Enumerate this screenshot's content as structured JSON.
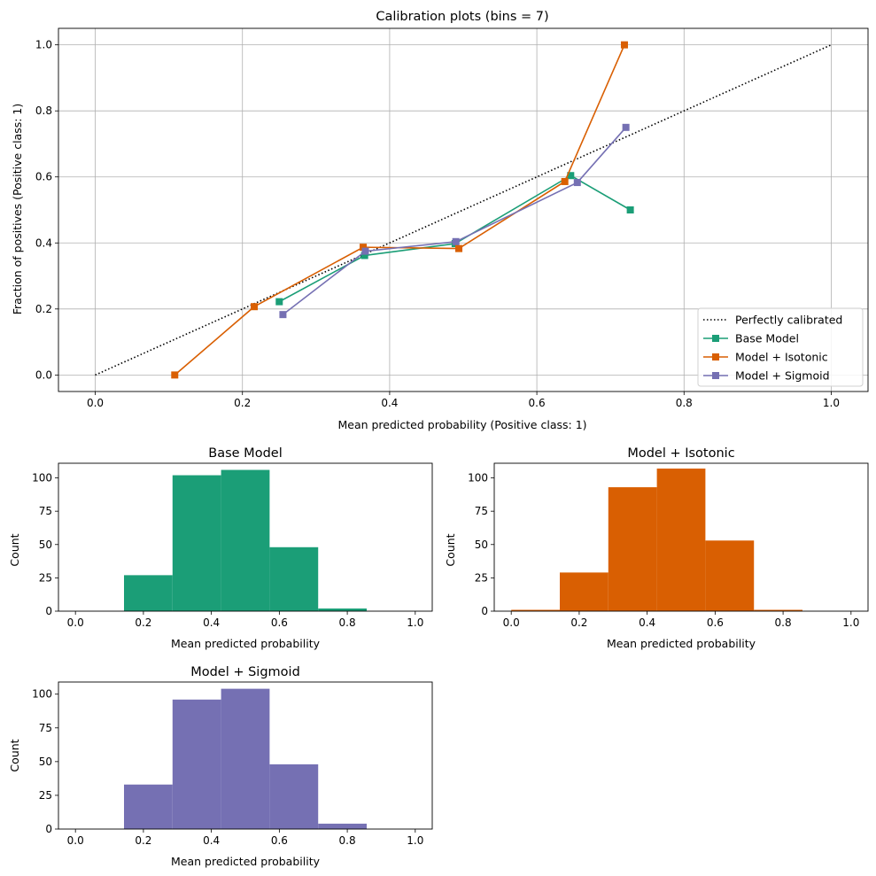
{
  "chart_data": [
    {
      "type": "line",
      "title": "Calibration plots (bins = 7)",
      "xlabel": "Mean predicted probability (Positive class: 1)",
      "ylabel": "Fraction of positives (Positive class: 1)",
      "xlim": [
        -0.05,
        1.05
      ],
      "ylim": [
        -0.05,
        1.05
      ],
      "xticks": [
        0.0,
        0.2,
        0.4,
        0.6,
        0.8,
        1.0
      ],
      "yticks": [
        0.0,
        0.2,
        0.4,
        0.6,
        0.8,
        1.0
      ],
      "grid": true,
      "legend": "lower-right",
      "reference": {
        "name": "Perfectly calibrated",
        "x": [
          0,
          1
        ],
        "y": [
          0,
          1
        ],
        "color": "#000000"
      },
      "series": [
        {
          "name": "Base Model",
          "color": "#1b9e77",
          "x": [
            0.25,
            0.366,
            0.489,
            0.646,
            0.727
          ],
          "y": [
            0.222,
            0.362,
            0.398,
            0.604,
            0.5
          ]
        },
        {
          "name": "Model + Isotonic",
          "color": "#d95f02",
          "x": [
            0.108,
            0.216,
            0.364,
            0.494,
            0.638,
            0.719
          ],
          "y": [
            0.0,
            0.207,
            0.387,
            0.383,
            0.586,
            1.0
          ]
        },
        {
          "name": "Model + Sigmoid",
          "color": "#7570b3",
          "x": [
            0.255,
            0.367,
            0.49,
            0.655,
            0.721
          ],
          "y": [
            0.183,
            0.375,
            0.404,
            0.583,
            0.75
          ]
        }
      ]
    },
    {
      "type": "bar",
      "title": "Base Model",
      "xlabel": "Mean predicted probability",
      "ylabel": "Count",
      "color": "#1b9e77",
      "xlim": [
        -0.05,
        1.05
      ],
      "ylim": [
        0,
        111
      ],
      "xticks": [
        0.0,
        0.2,
        0.4,
        0.6,
        0.8,
        1.0
      ],
      "yticks": [
        0,
        25,
        50,
        75,
        100
      ],
      "bin_edges": [
        0.0,
        0.1429,
        0.2857,
        0.4286,
        0.5714,
        0.7143,
        0.8571,
        1.0
      ],
      "counts": [
        0,
        27,
        102,
        106,
        48,
        2,
        0
      ]
    },
    {
      "type": "bar",
      "title": "Model + Isotonic",
      "xlabel": "Mean predicted probability",
      "ylabel": "Count",
      "color": "#d95f02",
      "xlim": [
        -0.05,
        1.05
      ],
      "ylim": [
        0,
        111
      ],
      "xticks": [
        0.0,
        0.2,
        0.4,
        0.6,
        0.8,
        1.0
      ],
      "yticks": [
        0,
        25,
        50,
        75,
        100
      ],
      "bin_edges": [
        0.0,
        0.1429,
        0.2857,
        0.4286,
        0.5714,
        0.7143,
        0.8571,
        1.0
      ],
      "counts": [
        1,
        29,
        93,
        107,
        53,
        1,
        0
      ]
    },
    {
      "type": "bar",
      "title": "Model + Sigmoid",
      "xlabel": "Mean predicted probability",
      "ylabel": "Count",
      "color": "#7570b3",
      "xlim": [
        -0.05,
        1.05
      ],
      "ylim": [
        0,
        109
      ],
      "xticks": [
        0.0,
        0.2,
        0.4,
        0.6,
        0.8,
        1.0
      ],
      "yticks": [
        0,
        25,
        50,
        75,
        100
      ],
      "bin_edges": [
        0.0,
        0.1429,
        0.2857,
        0.4286,
        0.5714,
        0.7143,
        0.8571,
        1.0
      ],
      "counts": [
        0,
        33,
        96,
        104,
        48,
        4,
        0
      ]
    }
  ]
}
